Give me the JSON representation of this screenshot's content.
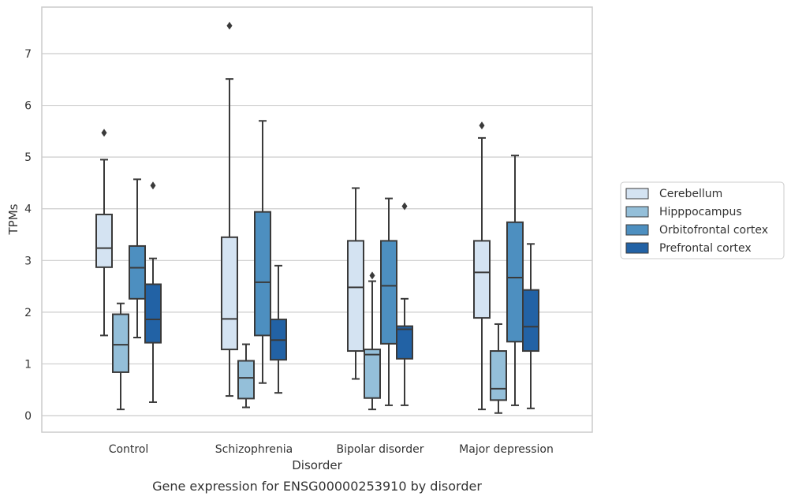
{
  "chart_data": {
    "type": "box",
    "caption": "Gene expression for ENSG00000253910 by disorder",
    "xlabel": "Disorder",
    "ylabel": "TPMs",
    "ylim": [
      -0.32,
      7.9
    ],
    "yticks": [
      0,
      1,
      2,
      3,
      4,
      5,
      6,
      7
    ],
    "grid": true,
    "legend_position": "right",
    "categories": [
      "Control",
      "Schizophrenia",
      "Bipolar disorder",
      "Major depression"
    ],
    "series": [
      {
        "name": "Cerebellum",
        "color": "#d4e3f2",
        "boxes": [
          {
            "whisker_low": 1.55,
            "q1": 2.87,
            "median": 3.24,
            "q3": 3.89,
            "whisker_high": 4.95,
            "outliers": [
              5.47
            ]
          },
          {
            "whisker_low": 0.38,
            "q1": 1.28,
            "median": 1.87,
            "q3": 3.45,
            "whisker_high": 6.51,
            "outliers": [
              7.54
            ]
          },
          {
            "whisker_low": 0.71,
            "q1": 1.25,
            "median": 2.48,
            "q3": 3.38,
            "whisker_high": 4.4,
            "outliers": []
          },
          {
            "whisker_low": 0.12,
            "q1": 1.89,
            "median": 2.77,
            "q3": 3.38,
            "whisker_high": 5.37,
            "outliers": [
              5.61
            ]
          }
        ]
      },
      {
        "name": "Hipppocampus",
        "color": "#94bfd9",
        "boxes": [
          {
            "whisker_low": 0.12,
            "q1": 0.84,
            "median": 1.37,
            "q3": 1.96,
            "whisker_high": 2.17,
            "outliers": []
          },
          {
            "whisker_low": 0.16,
            "q1": 0.33,
            "median": 0.73,
            "q3": 1.06,
            "whisker_high": 1.38,
            "outliers": []
          },
          {
            "whisker_low": 0.12,
            "q1": 0.34,
            "median": 1.18,
            "q3": 1.28,
            "whisker_high": 2.6,
            "outliers": [
              2.71
            ]
          },
          {
            "whisker_low": 0.05,
            "q1": 0.3,
            "median": 0.52,
            "q3": 1.25,
            "whisker_high": 1.77,
            "outliers": []
          }
        ]
      },
      {
        "name": "Orbitofrontal cortex",
        "color": "#4d8fc0",
        "boxes": [
          {
            "whisker_low": 1.51,
            "q1": 2.26,
            "median": 2.86,
            "q3": 3.28,
            "whisker_high": 4.57,
            "outliers": []
          },
          {
            "whisker_low": 0.63,
            "q1": 1.55,
            "median": 2.58,
            "q3": 3.94,
            "whisker_high": 5.7,
            "outliers": []
          },
          {
            "whisker_low": 0.2,
            "q1": 1.39,
            "median": 2.51,
            "q3": 3.38,
            "whisker_high": 4.2,
            "outliers": []
          },
          {
            "whisker_low": 0.2,
            "q1": 1.43,
            "median": 2.67,
            "q3": 3.74,
            "whisker_high": 5.03,
            "outliers": []
          }
        ]
      },
      {
        "name": "Prefrontal cortex",
        "color": "#2262a5",
        "boxes": [
          {
            "whisker_low": 0.26,
            "q1": 1.41,
            "median": 1.86,
            "q3": 2.54,
            "whisker_high": 3.04,
            "outliers": [
              4.45
            ]
          },
          {
            "whisker_low": 0.44,
            "q1": 1.08,
            "median": 1.46,
            "q3": 1.86,
            "whisker_high": 2.9,
            "outliers": []
          },
          {
            "whisker_low": 0.2,
            "q1": 1.1,
            "median": 1.67,
            "q3": 1.73,
            "whisker_high": 2.26,
            "outliers": [
              4.05
            ]
          },
          {
            "whisker_low": 0.14,
            "q1": 1.25,
            "median": 1.72,
            "q3": 2.43,
            "whisker_high": 3.32,
            "outliers": []
          }
        ]
      }
    ]
  }
}
